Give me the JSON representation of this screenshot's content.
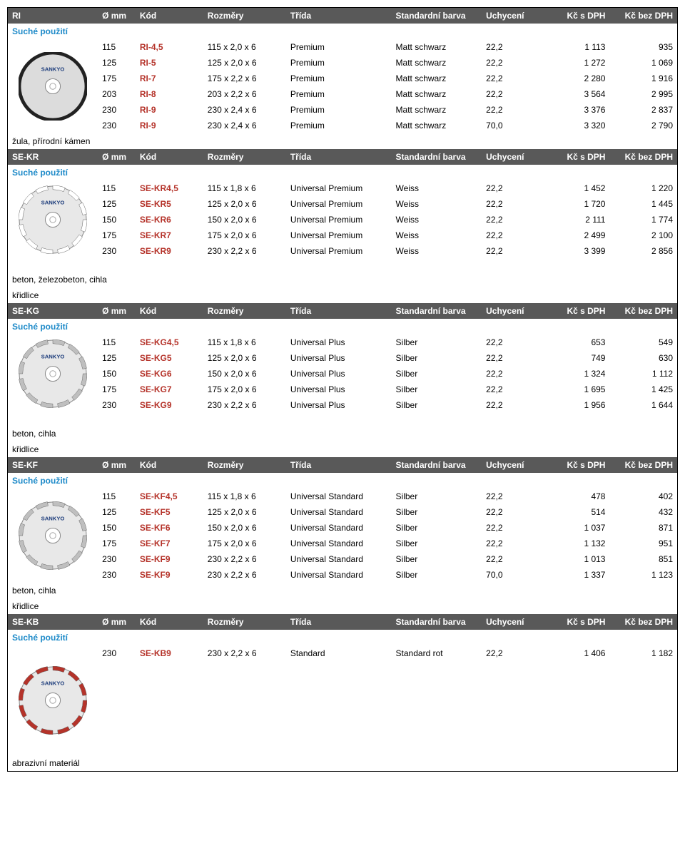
{
  "labels": {
    "usage": "Suché použití",
    "cols": {
      "mm": "Ø mm",
      "code": "Kód",
      "dim": "Rozměry",
      "class": "Třída",
      "color": "Standardní barva",
      "uchy": "Uchycení",
      "p1": "Kč s DPH",
      "p2": "Kč bez DPH"
    }
  },
  "colors": {
    "header_bg": "#595959",
    "header_fg": "#ffffff",
    "usage_fg": "#1f8bc9",
    "border": "#000000"
  },
  "sections": {
    "ri": {
      "name": "RI",
      "categories_after": [
        "žula, přírodní kámen"
      ],
      "rows": [
        {
          "mm": "115",
          "code": "RI-4,5",
          "dim": "115 x 2,0 x 6",
          "class": "Premium",
          "color": "Matt schwarz",
          "uchy": "22,2",
          "p1": "1 113",
          "p2": "935"
        },
        {
          "mm": "125",
          "code": "RI-5",
          "dim": "125 x 2,0 x 6",
          "class": "Premium",
          "color": "Matt schwarz",
          "uchy": "22,2",
          "p1": "1 272",
          "p2": "1 069"
        },
        {
          "mm": "175",
          "code": "RI-7",
          "dim": "175 x 2,2 x 6",
          "class": "Premium",
          "color": "Matt schwarz",
          "uchy": "22,2",
          "p1": "2 280",
          "p2": "1 916"
        },
        {
          "mm": "203",
          "code": "RI-8",
          "dim": "203 x 2,2 x 6",
          "class": "Premium",
          "color": "Matt schwarz",
          "uchy": "22,2",
          "p1": "3 564",
          "p2": "2 995"
        },
        {
          "mm": "230",
          "code": "RI-9",
          "dim": "230 x 2,4 x 6",
          "class": "Premium",
          "color": "Matt schwarz",
          "uchy": "22,2",
          "p1": "3 376",
          "p2": "2 837"
        },
        {
          "mm": "230",
          "code": "RI-9",
          "dim": "230 x 2,4 x 6",
          "class": "Premium",
          "color": "Matt schwarz",
          "uchy": "70,0",
          "p1": "3 320",
          "p2": "2 790"
        }
      ],
      "disc": {
        "type": "solid",
        "ring": "#c0392b",
        "body": "#dcdcdc",
        "label": "e0e0e0"
      }
    },
    "sekr": {
      "name": "SE-KR",
      "categories_after": [
        "beton, železobeton, cihla",
        "křidlice"
      ],
      "rows": [
        {
          "mm": "115",
          "code": "SE-KR4,5",
          "dim": "115 x 1,8 x 6",
          "class": "Universal Premium",
          "color": "Weiss",
          "uchy": "22,2",
          "p1": "1 452",
          "p2": "1 220"
        },
        {
          "mm": "125",
          "code": "SE-KR5",
          "dim": "125 x 2,0 x 6",
          "class": "Universal Premium",
          "color": "Weiss",
          "uchy": "22,2",
          "p1": "1 720",
          "p2": "1 445"
        },
        {
          "mm": "150",
          "code": "SE-KR6",
          "dim": "150 x 2,0 x 6",
          "class": "Universal Premium",
          "color": "Weiss",
          "uchy": "22,2",
          "p1": "2 111",
          "p2": "1 774"
        },
        {
          "mm": "175",
          "code": "SE-KR7",
          "dim": "175 x 2,0 x 6",
          "class": "Universal Premium",
          "color": "Weiss",
          "uchy": "22,2",
          "p1": "2 499",
          "p2": "2 100"
        },
        {
          "mm": "230",
          "code": "SE-KR9",
          "dim": "230 x 2,2 x 6",
          "class": "Universal Premium",
          "color": "Weiss",
          "uchy": "22,2",
          "p1": "3 399",
          "p2": "2 856"
        }
      ],
      "disc": {
        "type": "segmented",
        "ring": "#ffffff",
        "body": "#e8e8e8"
      }
    },
    "sekg": {
      "name": "SE-KG",
      "categories_after": [
        "beton, cihla",
        "křidlice"
      ],
      "rows": [
        {
          "mm": "115",
          "code": "SE-KG4,5",
          "dim": "115 x 1,8 x 6",
          "class": "Universal Plus",
          "color": "Silber",
          "uchy": "22,2",
          "p1": "653",
          "p2": "549"
        },
        {
          "mm": "125",
          "code": "SE-KG5",
          "dim": "125 x 2,0 x 6",
          "class": "Universal Plus",
          "color": "Silber",
          "uchy": "22,2",
          "p1": "749",
          "p2": "630"
        },
        {
          "mm": "150",
          "code": "SE-KG6",
          "dim": "150 x 2,0 x 6",
          "class": "Universal Plus",
          "color": "Silber",
          "uchy": "22,2",
          "p1": "1 324",
          "p2": "1 112"
        },
        {
          "mm": "175",
          "code": "SE-KG7",
          "dim": "175 x 2,0 x 6",
          "class": "Universal Plus",
          "color": "Silber",
          "uchy": "22,2",
          "p1": "1 695",
          "p2": "1 425"
        },
        {
          "mm": "230",
          "code": "SE-KG9",
          "dim": "230 x 2,2 x 6",
          "class": "Universal Plus",
          "color": "Silber",
          "uchy": "22,2",
          "p1": "1 956",
          "p2": "1 644"
        }
      ],
      "disc": {
        "type": "segmented",
        "ring": "#bfbfbf",
        "body": "#e8e8e8"
      }
    },
    "sekf": {
      "name": "SE-KF",
      "categories_after": [
        "beton, cihla",
        "křidlice"
      ],
      "rows": [
        {
          "mm": "115",
          "code": "SE-KF4,5",
          "dim": "115 x 1,8 x 6",
          "class": "Universal Standard",
          "color": "Silber",
          "uchy": "22,2",
          "p1": "478",
          "p2": "402"
        },
        {
          "mm": "125",
          "code": "SE-KF5",
          "dim": "125 x 2,0 x 6",
          "class": "Universal Standard",
          "color": "Silber",
          "uchy": "22,2",
          "p1": "514",
          "p2": "432"
        },
        {
          "mm": "150",
          "code": "SE-KF6",
          "dim": "150 x 2,0 x 6",
          "class": "Universal Standard",
          "color": "Silber",
          "uchy": "22,2",
          "p1": "1 037",
          "p2": "871"
        },
        {
          "mm": "175",
          "code": "SE-KF7",
          "dim": "175 x 2,0 x 6",
          "class": "Universal Standard",
          "color": "Silber",
          "uchy": "22,2",
          "p1": "1 132",
          "p2": "951"
        },
        {
          "mm": "230",
          "code": "SE-KF9",
          "dim": "230 x 2,2 x 6",
          "class": "Universal Standard",
          "color": "Silber",
          "uchy": "22,2",
          "p1": "1 013",
          "p2": "851"
        },
        {
          "mm": "230",
          "code": "SE-KF9",
          "dim": "230 x 2,2 x 6",
          "class": "Universal Standard",
          "color": "Silber",
          "uchy": "70,0",
          "p1": "1 337",
          "p2": "1 123"
        }
      ],
      "disc": {
        "type": "segmented",
        "ring": "#bfbfbf",
        "body": "#e8e8e8"
      }
    },
    "sekb": {
      "name": "SE-KB",
      "categories_after": [
        "abrazivní materiál"
      ],
      "rows": [
        {
          "mm": "230",
          "code": "SE-KB9",
          "dim": "230 x 2,2 x 6",
          "class": "Standard",
          "color": "Standard rot",
          "uchy": "22,2",
          "p1": "1 406",
          "p2": "1 182"
        }
      ],
      "disc": {
        "type": "segmented",
        "ring": "#b5332a",
        "body": "#e8e8e8"
      }
    }
  }
}
